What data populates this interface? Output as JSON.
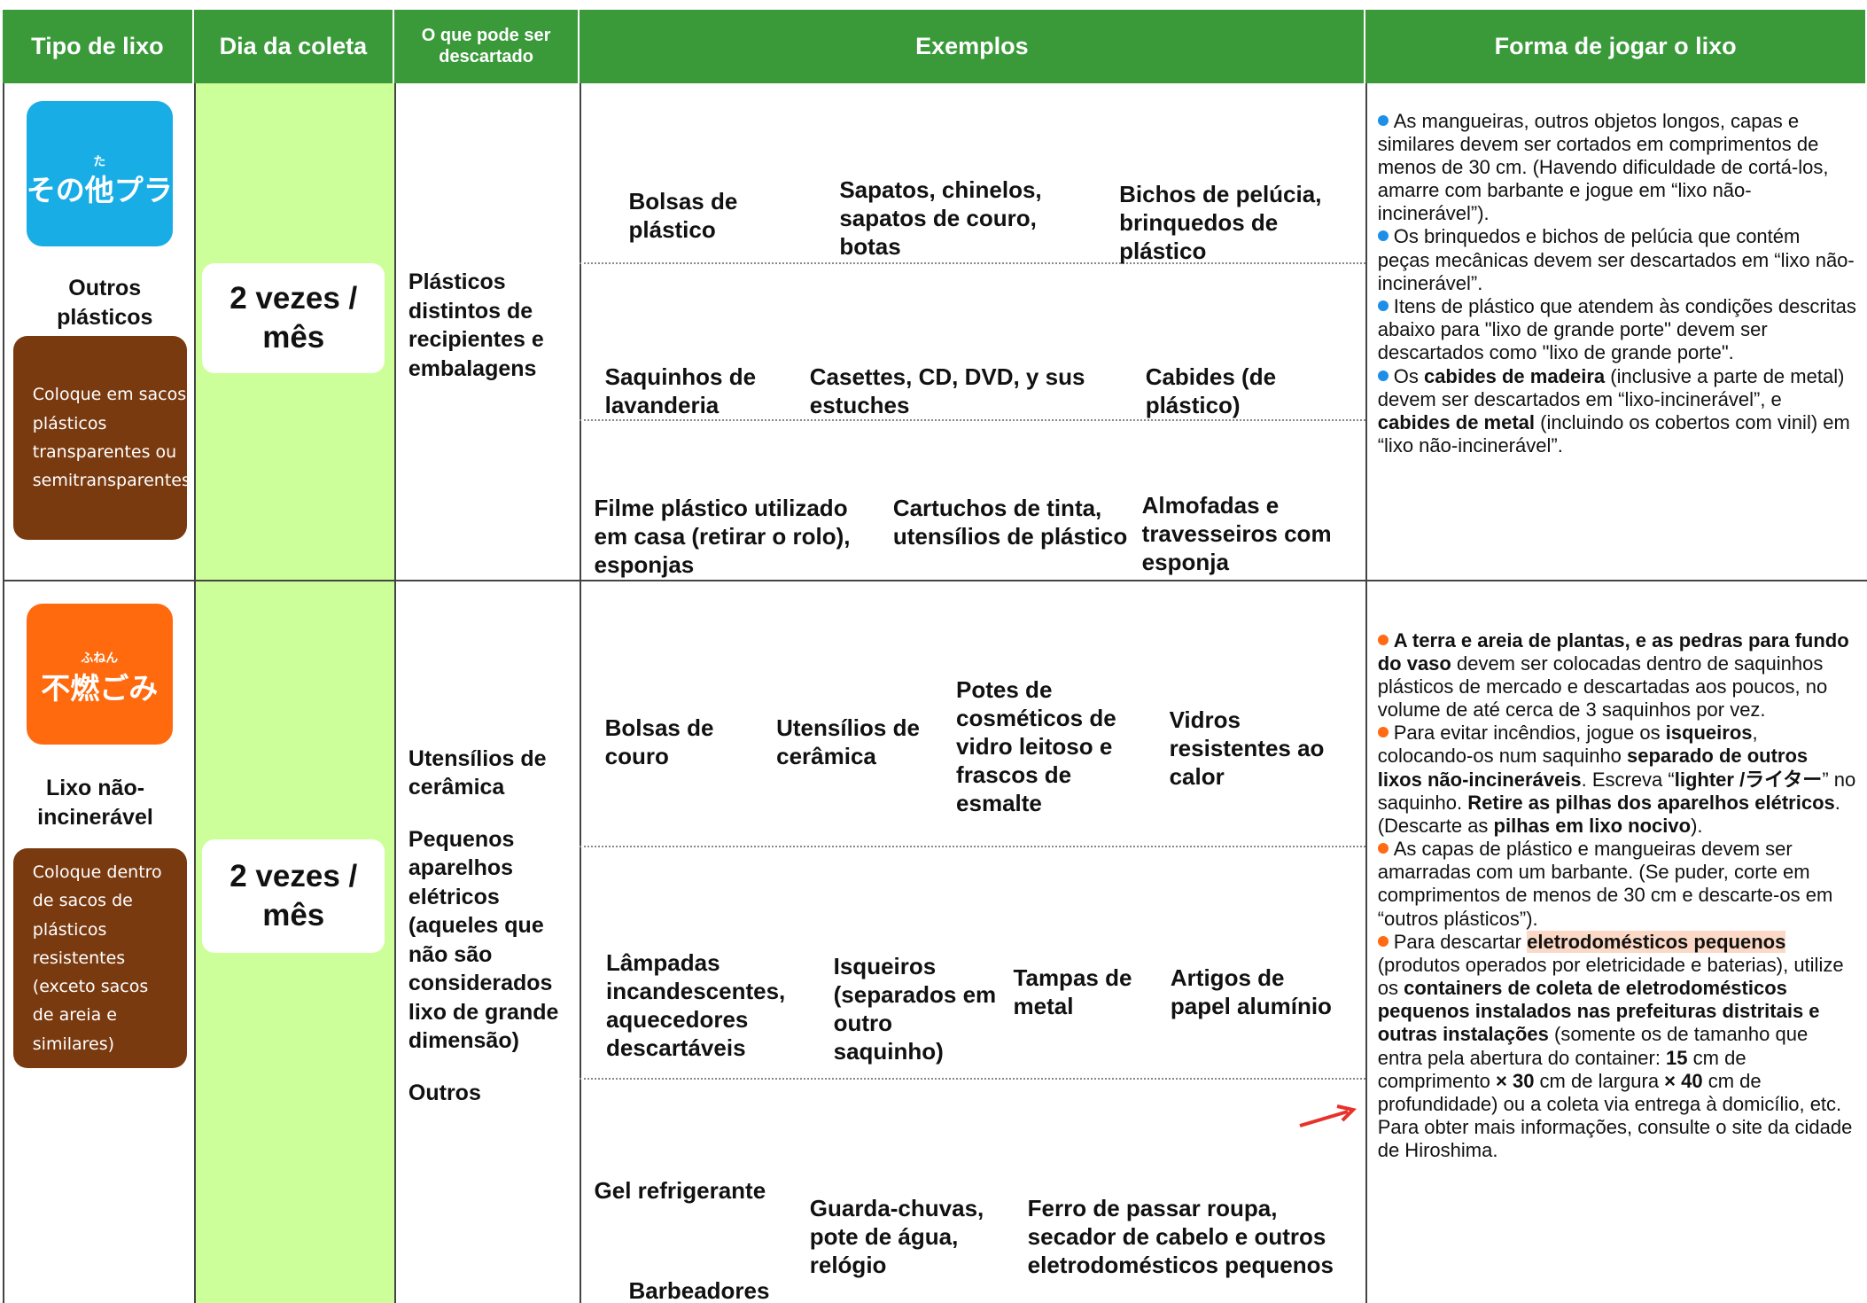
{
  "header": {
    "type": "Tipo de lixo",
    "day": "Dia da coleta",
    "what": "O que pode ser descartado",
    "examples": "Exemplos",
    "how": "Forma de jogar o lixo"
  },
  "rows": [
    {
      "badge": {
        "ruby": "た",
        "text": "その他プラ"
      },
      "type_name": "Outros plásticos",
      "note": "Coloque em sacos plásticos transparentes ou semitransparentes",
      "frequency": "2 vezes / mês",
      "what": [
        "Plásticos distintos de recipientes e embalagens"
      ],
      "examples": [
        [
          "Bolsas de plástico",
          "Sapatos, chinelos, sapatos de couro, botas",
          "Bichos de pelúcia, brinquedos de plástico"
        ],
        [
          "Saquinhos de lavanderia",
          "Casettes, CD, DVD, y sus estuches",
          "Cabides (de plástico)"
        ],
        [
          "Filme plástico utilizado em casa (retirar o rolo), esponjas",
          "Cartuchos de tinta, utensílios de plástico",
          "Almofadas e travesseiros com esponja"
        ]
      ],
      "instructions": [
        [
          {
            "text": "As mangueiras, outros objetos longos, capas e similares devem ser cortados em comprimentos de menos de 30 cm. (Havendo dificuldade de cortá-los, amarre com barbante e jogue em “lixo não-incinerável”)."
          }
        ],
        [
          {
            "text": "Os brinquedos e bichos de pelúcia que contém peças mecânicas devem ser descartados em “lixo não-incinerável”."
          }
        ],
        [
          {
            "text": "Itens de plástico que atendem às condições descritas abaixo para \"lixo de grande porte\" devem ser descartados como \"lixo de grande porte\"."
          }
        ],
        [
          {
            "text": "Os "
          },
          {
            "text": "cabides de madeira",
            "bold": true
          },
          {
            "text": " (inclusive a parte de metal) devem ser descartados em “lixo-incinerável”, e "
          },
          {
            "text": "cabides de metal",
            "bold": true
          },
          {
            "text": " (incluindo os cobertos com vinil) em “lixo não-incinerável”."
          }
        ]
      ]
    },
    {
      "badge": {
        "ruby": "ふねん",
        "text": "不燃ごみ"
      },
      "type_name": "Lixo não-incinerável",
      "note": "Coloque dentro de sacos de plásticos resistentes (exceto sacos de areia e similares)",
      "frequency": "2 vezes / mês",
      "what": [
        "Utensílios de cerâmica",
        "Pequenos aparelhos elétricos (aqueles que não são considerados lixo de grande dimensão)",
        "Outros"
      ],
      "examples": [
        [
          "Bolsas de couro",
          "Utensílios de cerâmica",
          "Potes de cosméticos de vidro leitoso e frascos de esmalte",
          "Vidros resistentes ao calor"
        ],
        [
          "Lâmpadas incandescentes, aquecedores descartáveis",
          "Isqueiros (separados em outro saquinho)",
          "Tampas de metal",
          "Artigos de papel alumínio"
        ],
        [
          "Gel refrigerante",
          "Barbeadores",
          "Guarda-chuvas, pote de água, relógio",
          "Ferro de passar roupa, secador de cabelo e outros eletrodomésticos pequenos"
        ]
      ],
      "instructions": [
        [
          {
            "text": "A terra e areia de plantas, e as pedras para fundo do vaso",
            "bold": true
          },
          {
            "text": " devem ser colocadas dentro de saquinhos plásticos de mercado e descartadas aos poucos, no volume de até cerca de 3 saquinhos por vez."
          }
        ],
        [
          {
            "text": "Para evitar incêndios, jogue os "
          },
          {
            "text": "isqueiros",
            "bold": true
          },
          {
            "text": ", colocando-os num saquinho "
          },
          {
            "text": "separado de outros lixos não-incineráveis",
            "bold": true
          },
          {
            "text": ". Escreva “"
          },
          {
            "text": "lighter /ライター",
            "bold": true
          },
          {
            "text": "” no saquinho. "
          },
          {
            "text": "Retire as pilhas dos aparelhos elétricos",
            "bold": true
          },
          {
            "text": ". (Descarte as "
          },
          {
            "text": "pilhas em lixo nocivo",
            "bold": true
          },
          {
            "text": ")."
          }
        ],
        [
          {
            "text": "As capas de plástico e mangueiras devem ser amarradas com um barbante. (Se puder, corte em comprimentos de menos de 30 cm e descarte-os em “outros plásticos”)."
          }
        ],
        [
          {
            "text": "Para descartar "
          },
          {
            "text": "eletrodomésticos pequenos",
            "bold": true,
            "highlight": true
          },
          {
            "text": " (produtos operados por eletricidade e baterias), utilize os "
          },
          {
            "text": "containers de coleta de eletrodomésticos pequenos instalados nas prefeituras distritais e outras instalações",
            "bold": true
          },
          {
            "text": " (somente os de tamanho que entra pela abertura do container: "
          },
          {
            "text": "15",
            "bold": true
          },
          {
            "text": " cm de comprimento "
          },
          {
            "text": "× 30",
            "bold": true
          },
          {
            "text": " cm de largura "
          },
          {
            "text": "× 40",
            "bold": true
          },
          {
            "text": " cm de profundidade) ou a coleta via entrega à domicílio, etc. Para obter mais informações, consulte o site da cidade de Hiroshima."
          }
        ]
      ]
    }
  ]
}
